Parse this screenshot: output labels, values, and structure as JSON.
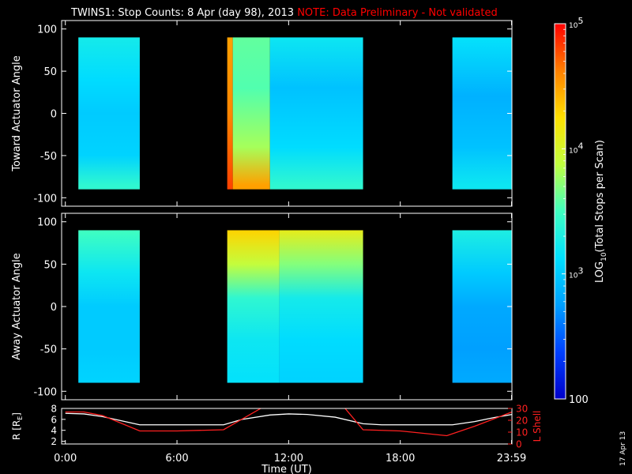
{
  "header": {
    "title": "TWINS1: Stop Counts:  8 Apr (day  98), 2013",
    "note": "NOTE: Data Preliminary - Not validated",
    "note_color": "#ff0000"
  },
  "side_stamp": "17 Apr 13",
  "chart_data": [
    {
      "type": "heatmap",
      "ylabel": "Toward Actuator Angle",
      "ylim": [
        -110,
        110
      ],
      "yticks": [
        100,
        50,
        0,
        -50,
        -100
      ],
      "y_extent": [
        -90,
        90
      ],
      "x_unit": "hours UT",
      "data_spans": [
        [
          0.7,
          4.0
        ],
        [
          8.7,
          16.0
        ],
        [
          20.8,
          24.0
        ]
      ],
      "spans_note": "log10 counts, ~2.7 blue to ~4.9 red",
      "segments": [
        {
          "start": 0.7,
          "end": 4.0,
          "level_by_angle": [
            {
              "angle": 90,
              "log": 3.25
            },
            {
              "angle": 40,
              "log": 3.1
            },
            {
              "angle": 0,
              "log": 3.0
            },
            {
              "angle": -50,
              "log": 3.05
            },
            {
              "angle": -85,
              "log": 3.4
            }
          ]
        },
        {
          "start": 8.7,
          "end": 9.0,
          "level_by_angle": [
            {
              "angle": 90,
              "log": 4.5
            },
            {
              "angle": 0,
              "log": 4.6
            },
            {
              "angle": -85,
              "log": 4.8
            }
          ]
        },
        {
          "start": 9.0,
          "end": 11.0,
          "level_by_angle": [
            {
              "angle": 90,
              "log": 3.6
            },
            {
              "angle": 30,
              "log": 3.55
            },
            {
              "angle": -40,
              "log": 3.8
            },
            {
              "angle": -85,
              "log": 4.5
            }
          ]
        },
        {
          "start": 11.0,
          "end": 16.0,
          "level_by_angle": [
            {
              "angle": 90,
              "log": 3.2
            },
            {
              "angle": 30,
              "log": 2.95
            },
            {
              "angle": -40,
              "log": 3.1
            },
            {
              "angle": -85,
              "log": 3.4
            }
          ]
        },
        {
          "start": 20.8,
          "end": 24.0,
          "level_by_angle": [
            {
              "angle": 90,
              "log": 3.15
            },
            {
              "angle": 20,
              "log": 2.85
            },
            {
              "angle": -40,
              "log": 2.95
            },
            {
              "angle": -85,
              "log": 3.2
            }
          ]
        }
      ]
    },
    {
      "type": "heatmap",
      "ylabel": "Away Actuator Angle",
      "ylim": [
        -110,
        110
      ],
      "yticks": [
        100,
        50,
        0,
        -50,
        -100
      ],
      "y_extent": [
        -90,
        90
      ],
      "x_unit": "hours UT",
      "segments": [
        {
          "start": 0.7,
          "end": 4.0,
          "level_by_angle": [
            {
              "angle": 90,
              "log": 3.5
            },
            {
              "angle": 40,
              "log": 3.2
            },
            {
              "angle": 0,
              "log": 3.0
            },
            {
              "angle": -50,
              "log": 3.0
            },
            {
              "angle": -85,
              "log": 3.05
            }
          ]
        },
        {
          "start": 8.7,
          "end": 11.5,
          "level_by_angle": [
            {
              "angle": 90,
              "log": 4.3
            },
            {
              "angle": 50,
              "log": 3.9
            },
            {
              "angle": 10,
              "log": 3.4
            },
            {
              "angle": -40,
              "log": 3.2
            },
            {
              "angle": -85,
              "log": 3.15
            }
          ]
        },
        {
          "start": 11.5,
          "end": 16.0,
          "level_by_angle": [
            {
              "angle": 90,
              "log": 4.1
            },
            {
              "angle": 50,
              "log": 3.7
            },
            {
              "angle": 10,
              "log": 3.25
            },
            {
              "angle": -40,
              "log": 3.1
            },
            {
              "angle": -85,
              "log": 3.05
            }
          ]
        },
        {
          "start": 20.8,
          "end": 24.0,
          "level_by_angle": [
            {
              "angle": 90,
              "log": 3.3
            },
            {
              "angle": 40,
              "log": 3.0
            },
            {
              "angle": 0,
              "log": 2.8
            },
            {
              "angle": -50,
              "log": 2.75
            },
            {
              "angle": -85,
              "log": 2.8
            }
          ]
        }
      ]
    },
    {
      "type": "line",
      "ylabel_left": "R [R",
      "ylabel_left_sub": "E",
      "ylabel_left_tail": "]",
      "ylabel_right": "L Shell",
      "ylim_left": [
        1.5,
        8
      ],
      "yticks_left": [
        2,
        4,
        6,
        8
      ],
      "ylim_right": [
        0,
        30
      ],
      "yticks_right": [
        0,
        10,
        20,
        30
      ],
      "series": [
        {
          "axis": "left",
          "color": "#ffffff",
          "x": [
            0,
            1,
            2,
            4,
            6,
            8.5,
            9.5,
            11,
            12,
            13,
            14.5,
            16,
            17,
            19,
            20.8,
            22,
            23,
            24
          ],
          "y": [
            7.1,
            7.0,
            6.5,
            5.0,
            5.0,
            5.0,
            6.0,
            6.8,
            7.0,
            6.9,
            6.4,
            5.2,
            5.0,
            5.0,
            5.0,
            5.6,
            6.3,
            6.9
          ]
        },
        {
          "axis": "right",
          "color": "#ff2020",
          "x": [
            0,
            1,
            2,
            4,
            6,
            8.5,
            10.5,
            11.5,
            14.5,
            16,
            18,
            20.5,
            22,
            24
          ],
          "y": [
            27,
            27,
            24,
            11,
            11,
            12,
            30,
            40,
            40,
            12,
            11,
            7,
            15,
            27
          ]
        }
      ],
      "xlabel": "Time (UT)",
      "xticks": [
        {
          "value": 0,
          "label": "0:00"
        },
        {
          "value": 6,
          "label": "6:00"
        },
        {
          "value": 12,
          "label": "12:00"
        },
        {
          "value": 18,
          "label": "18:00"
        },
        {
          "value": 23.98,
          "label": "23:59"
        }
      ],
      "xlim": [
        -0.2,
        24
      ]
    }
  ],
  "colorbar": {
    "title": "LOG",
    "title_sub": "10",
    "title_tail": "(Total Stops per Scan)",
    "ticks": [
      {
        "value": 100000,
        "base": "10",
        "exp": "5"
      },
      {
        "value": 10000,
        "base": "10",
        "exp": "4"
      },
      {
        "value": 1000,
        "base": "10",
        "exp": "3"
      },
      {
        "value": 100,
        "base": "100",
        "exp": ""
      }
    ],
    "range": [
      100,
      100000
    ],
    "scale": "log",
    "colors": [
      "#0000c8",
      "#0040ff",
      "#00a0ff",
      "#00e0ff",
      "#40ffc0",
      "#c0ff40",
      "#ffe000",
      "#ff8000",
      "#ff0000"
    ]
  }
}
